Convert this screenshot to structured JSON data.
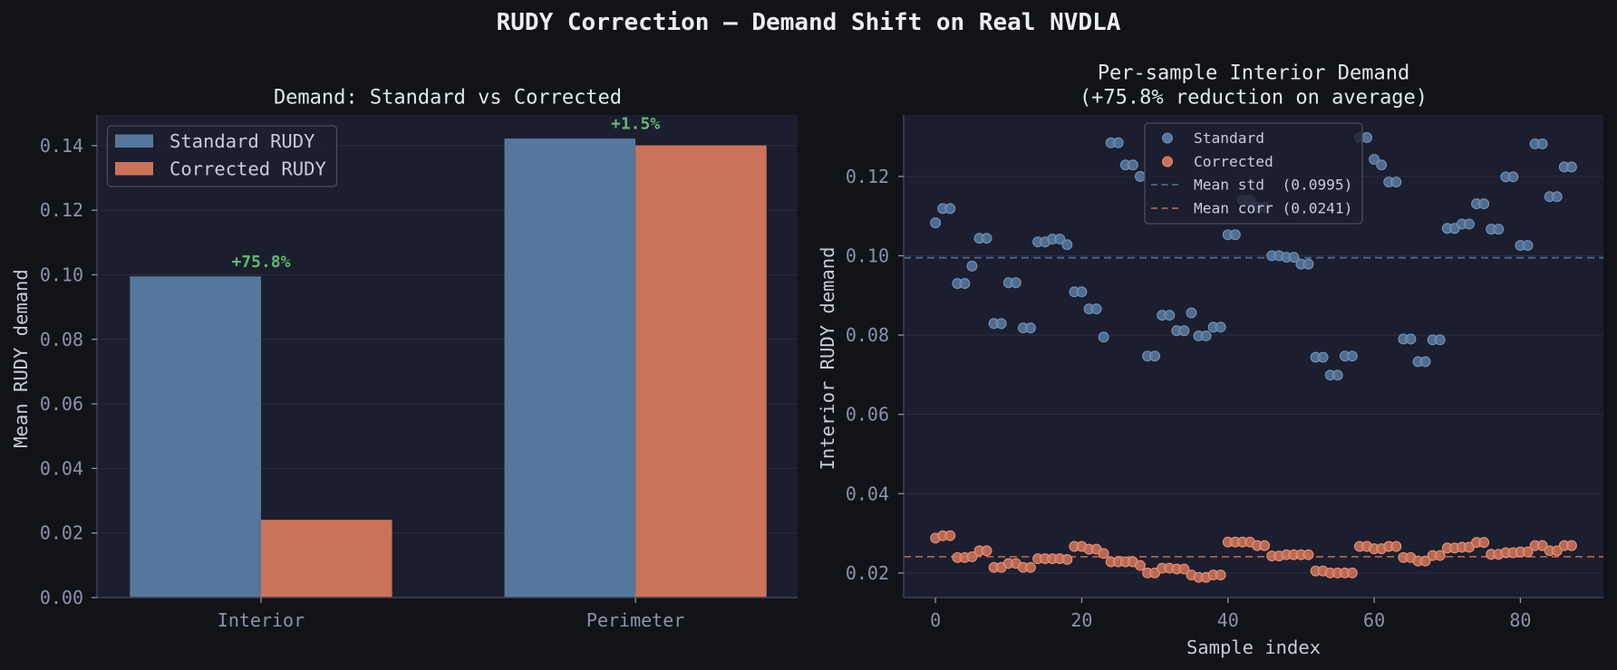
{
  "figure": {
    "title": "RUDY Correction — Demand Shift on Real NVDLA",
    "colors": {
      "background": "#111318",
      "axes_background": "#1b1e2e",
      "standard": "#56779c",
      "corrected": "#cb7358",
      "annotation_green": "#5fba6e",
      "mean_std_line": "#4b6788",
      "mean_corr_line": "#a9634e"
    }
  },
  "left_panel": {
    "title": "Demand: Standard vs Corrected",
    "ylabel": "Mean RUDY demand",
    "legend": [
      {
        "label": "Standard RUDY",
        "color": "#56779c"
      },
      {
        "label": "Corrected RUDY",
        "color": "#cb7358"
      }
    ]
  },
  "right_panel": {
    "title_line1": "Per-sample Interior Demand",
    "title_line2": "(+75.8% reduction on average)",
    "xlabel": "Sample index",
    "ylabel": "Interior RUDY demand",
    "legend": [
      {
        "label": "Standard",
        "kind": "marker",
        "color": "#56779c"
      },
      {
        "label": "Corrected",
        "kind": "marker",
        "color": "#cb7358"
      },
      {
        "label": "Mean std  (0.0995)",
        "kind": "dashed",
        "color": "#4b6788"
      },
      {
        "label": "Mean corr (0.0241)",
        "kind": "dashed",
        "color": "#a9634e"
      }
    ]
  },
  "chart_data": [
    {
      "type": "bar",
      "title": "Demand: Standard vs Corrected",
      "xlabel": "",
      "ylabel": "Mean RUDY demand",
      "categories": [
        "Interior",
        "Perimeter"
      ],
      "series": [
        {
          "name": "Standard RUDY",
          "values": [
            0.0995,
            0.1422
          ],
          "color": "#56779c"
        },
        {
          "name": "Corrected RUDY",
          "values": [
            0.0241,
            0.1401
          ],
          "color": "#cb7358"
        }
      ],
      "annotations": [
        "+75.8%",
        "+1.5%"
      ],
      "ylim": [
        0,
        0.1495
      ],
      "xlim": [
        -0.438,
        1.433
      ],
      "yticks": [
        0.0,
        0.02,
        0.04,
        0.06,
        0.08,
        0.1,
        0.12,
        0.14
      ],
      "ytick_labels": [
        "0.00",
        "0.02",
        "0.04",
        "0.06",
        "0.08",
        "0.10",
        "0.12",
        "0.14"
      ],
      "grid": "horizontal",
      "legend_position": "upper left"
    },
    {
      "type": "scatter",
      "title": "Per-sample Interior Demand\n(+75.8% reduction on average)",
      "xlabel": "Sample index",
      "ylabel": "Interior RUDY demand",
      "x_start": 0,
      "series": [
        {
          "name": "Standard",
          "color": "#56779c",
          "values": [
            0.1083,
            0.1119,
            0.1119,
            0.093,
            0.093,
            0.0974,
            0.1044,
            0.1044,
            0.0829,
            0.0829,
            0.0932,
            0.0932,
            0.0818,
            0.0818,
            0.1035,
            0.1035,
            0.1042,
            0.1042,
            0.1028,
            0.0909,
            0.0909,
            0.0866,
            0.0866,
            0.0795,
            0.1285,
            0.1285,
            0.1229,
            0.1229,
            0.12,
            0.0747,
            0.0747,
            0.085,
            0.085,
            0.0811,
            0.0811,
            0.0856,
            0.0798,
            0.0798,
            0.082,
            0.082,
            0.1053,
            0.1053,
            0.114,
            0.114,
            0.1122,
            0.1122,
            0.1,
            0.1,
            0.0996,
            0.0996,
            0.0979,
            0.0979,
            0.0744,
            0.0744,
            0.0699,
            0.0699,
            0.0747,
            0.0747,
            0.1298,
            0.1298,
            0.1243,
            0.1229,
            0.1186,
            0.1186,
            0.079,
            0.079,
            0.0733,
            0.0733,
            0.0788,
            0.0788,
            0.1069,
            0.1069,
            0.108,
            0.108,
            0.1131,
            0.1131,
            0.1067,
            0.1067,
            0.1199,
            0.1199,
            0.1026,
            0.1026,
            0.1282,
            0.1282,
            0.1149,
            0.1149,
            0.1224,
            0.1224
          ]
        },
        {
          "name": "Corrected",
          "color": "#cb7358",
          "values": [
            0.0288,
            0.0294,
            0.0294,
            0.0239,
            0.0239,
            0.0241,
            0.0256,
            0.0256,
            0.0214,
            0.0214,
            0.0224,
            0.0224,
            0.0214,
            0.0214,
            0.0236,
            0.0236,
            0.0236,
            0.0236,
            0.0234,
            0.0267,
            0.0267,
            0.026,
            0.026,
            0.0249,
            0.0228,
            0.0228,
            0.0228,
            0.0228,
            0.0219,
            0.02,
            0.02,
            0.0212,
            0.0212,
            0.021,
            0.021,
            0.0195,
            0.0189,
            0.0189,
            0.0195,
            0.0195,
            0.0278,
            0.0278,
            0.0278,
            0.0278,
            0.0269,
            0.0269,
            0.0243,
            0.0243,
            0.0246,
            0.0246,
            0.0246,
            0.0246,
            0.0205,
            0.0205,
            0.02,
            0.02,
            0.02,
            0.02,
            0.0267,
            0.0267,
            0.0261,
            0.0261,
            0.0267,
            0.0267,
            0.0239,
            0.0239,
            0.023,
            0.023,
            0.0244,
            0.0244,
            0.0263,
            0.0263,
            0.0265,
            0.0265,
            0.0277,
            0.0277,
            0.0247,
            0.0247,
            0.0251,
            0.0251,
            0.0253,
            0.0253,
            0.0269,
            0.0269,
            0.0256,
            0.0256,
            0.0269,
            0.0269
          ]
        }
      ],
      "hlines": [
        {
          "name": "Mean std",
          "value": 0.0995,
          "color": "#4b6788",
          "style": "dashed"
        },
        {
          "name": "Mean corr",
          "value": 0.0241,
          "color": "#a9634e",
          "style": "dashed"
        }
      ],
      "xlim": [
        -4.35,
        91.35
      ],
      "ylim": [
        0.0138,
        0.1355
      ],
      "xticks": [
        0,
        20,
        40,
        60,
        80
      ],
      "xtick_labels": [
        "0",
        "20",
        "40",
        "60",
        "80"
      ],
      "yticks": [
        0.02,
        0.04,
        0.06,
        0.08,
        0.1,
        0.12
      ],
      "ytick_labels": [
        "0.02",
        "0.04",
        "0.06",
        "0.08",
        "0.10",
        "0.12"
      ],
      "grid": "horizontal",
      "legend_position": "upper center"
    }
  ]
}
